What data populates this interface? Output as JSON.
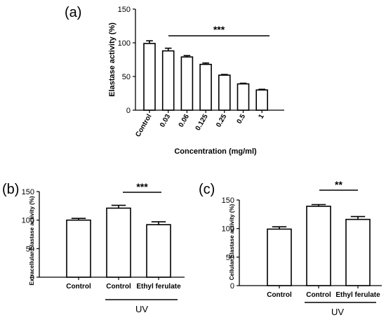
{
  "chart_data": [
    {
      "panel_label": "(a)",
      "type": "bar",
      "xlabel": "Concentration  (mg/ml)",
      "ylabel": "Elastase activity (%)",
      "ylim": [
        0,
        150
      ],
      "yticks": [
        0,
        50,
        100,
        150
      ],
      "categories": [
        "Control",
        "0.03",
        "0.06",
        "0.125",
        "0.25",
        "0.5",
        "1"
      ],
      "values": [
        99,
        88,
        79,
        68,
        52,
        39,
        30
      ],
      "errors": [
        4,
        4,
        2,
        2,
        1,
        1,
        1
      ],
      "significance": "***"
    },
    {
      "panel_label": "(b)",
      "type": "bar",
      "xlabel": "",
      "ylabel": "Extracellular Elastase activity (%)",
      "ylim": [
        0,
        150
      ],
      "yticks": [
        0,
        50,
        100,
        150
      ],
      "categories": [
        "Control",
        "Control",
        "Ethyl ferulate"
      ],
      "values": [
        100,
        121,
        92
      ],
      "errors": [
        3,
        5,
        5
      ],
      "significance": "***",
      "group_label": "UV"
    },
    {
      "panel_label": "(c)",
      "type": "bar",
      "xlabel": "",
      "ylabel": "Cellular Elastase activity (%)",
      "ylim": [
        0,
        150
      ],
      "yticks": [
        0,
        50,
        100,
        150
      ],
      "categories": [
        "Control",
        "Control",
        "Ethyl ferulate"
      ],
      "values": [
        99,
        139,
        116
      ],
      "errors": [
        4,
        3,
        5
      ],
      "significance": "**",
      "group_label": "UV"
    }
  ]
}
